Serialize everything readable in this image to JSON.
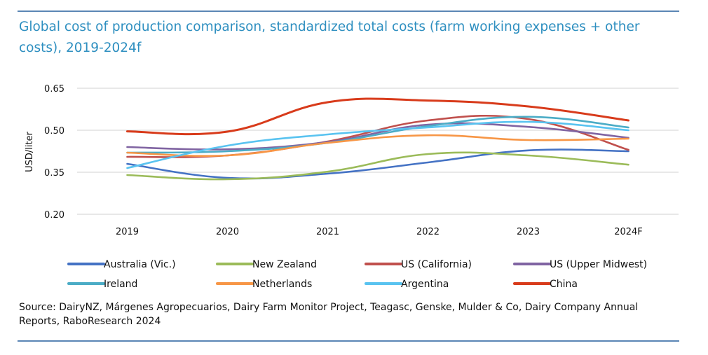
{
  "chart_data": {
    "type": "line",
    "title": "Global cost of production comparison, standardized total costs (farm working expenses + other costs), 2019-2024f",
    "xlabel": "",
    "ylabel": "USD/liter",
    "categories": [
      "2019",
      "2020",
      "2021",
      "2022",
      "2023",
      "2024F"
    ],
    "ylim": [
      0.2,
      0.65
    ],
    "yticks": [
      "0.20",
      "0.35",
      "0.50",
      "0.65"
    ],
    "grid": true,
    "legend_position": "bottom",
    "series": [
      {
        "name": "Australia (Vic.)",
        "color": "#4472c4",
        "values": [
          0.38,
          0.33,
          0.345,
          0.385,
          0.428,
          0.425
        ]
      },
      {
        "name": "New Zealand",
        "color": "#9bbb59",
        "values": [
          0.34,
          0.325,
          0.352,
          0.415,
          0.41,
          0.377
        ]
      },
      {
        "name": "US (California)",
        "color": "#c0504d",
        "values": [
          0.405,
          0.41,
          0.46,
          0.535,
          0.54,
          0.43
        ]
      },
      {
        "name": "US (Upper Midwest)",
        "color": "#8064a2",
        "values": [
          0.44,
          0.432,
          0.458,
          0.52,
          0.512,
          0.473
        ]
      },
      {
        "name": "Ireland",
        "color": "#4bacc6",
        "values": [
          0.42,
          0.425,
          0.455,
          0.515,
          0.548,
          0.51
        ]
      },
      {
        "name": "Netherlands",
        "color": "#f79646",
        "values": [
          0.42,
          0.41,
          0.455,
          0.482,
          0.465,
          0.47
        ]
      },
      {
        "name": "Argentina",
        "color": "#59c3f0",
        "values": [
          0.365,
          0.445,
          0.485,
          0.51,
          0.53,
          0.5
        ]
      },
      {
        "name": "China",
        "color": "#d83b1b",
        "values": [
          0.496,
          0.495,
          0.6,
          0.606,
          0.585,
          0.535
        ]
      }
    ]
  },
  "source": "Source: DairyNZ, Márgenes Agropecuarios, Dairy Farm Monitor Project, Teagasc, Genske, Mulder & Co, Dairy Company Annual Reports, RaboResearch 2024"
}
